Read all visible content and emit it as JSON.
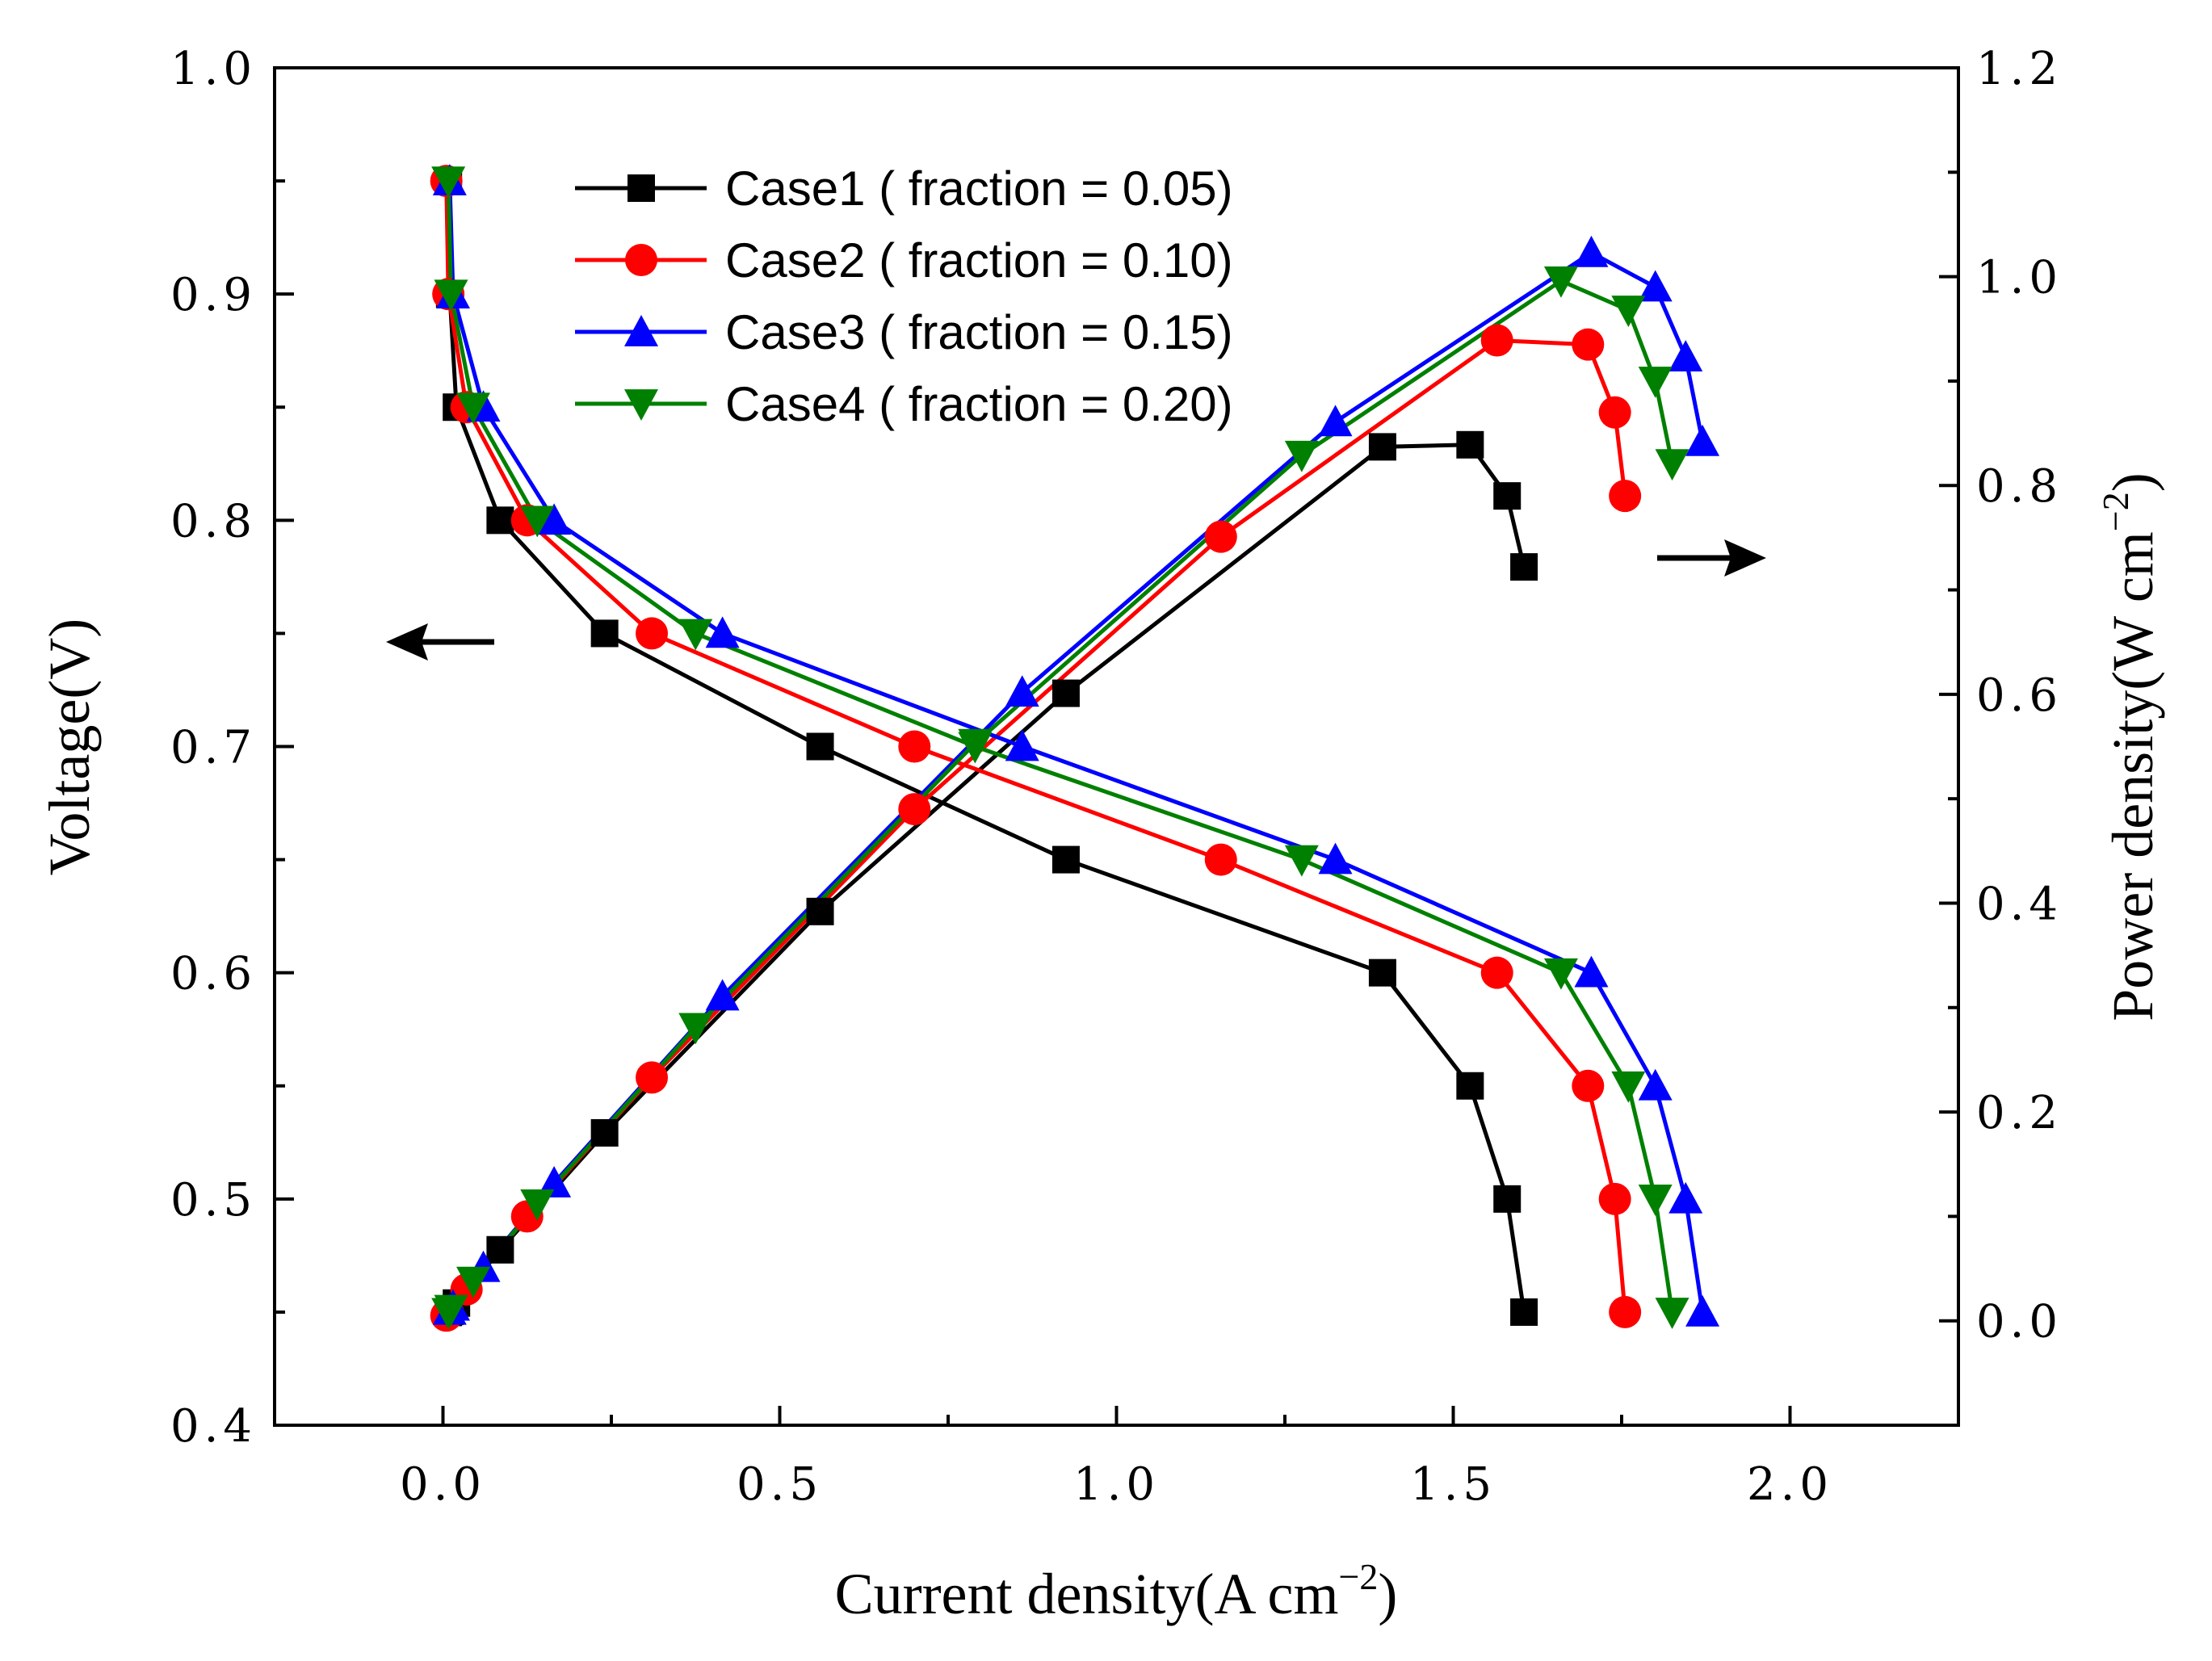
{
  "chart_data": {
    "type": "line",
    "title": "",
    "xlabel": "Current density(A cm",
    "xlabel_sup": "−2",
    "xlabel_end": ")",
    "ylabel": "Voltage(V)",
    "y2label": "Power density(W cm",
    "y2label_sup": "−2",
    "y2label_end": ")",
    "xlim": [
      -0.25,
      2.25
    ],
    "ylim": [
      0.4,
      1.0
    ],
    "y2lim": [
      -0.1,
      1.2
    ],
    "xticks": [
      0.0,
      0.5,
      1.0,
      1.5,
      2.0
    ],
    "xtick_labels": [
      "0.0",
      "0.5",
      "1.0",
      "1.5",
      "2.0"
    ],
    "yticks": [
      0.4,
      0.5,
      0.6,
      0.7,
      0.8,
      0.9,
      1.0
    ],
    "ytick_labels": [
      "0.4",
      "0.5",
      "0.6",
      "0.7",
      "0.8",
      "0.9",
      "1.0"
    ],
    "y2ticks": [
      0.0,
      0.2,
      0.4,
      0.6,
      0.8,
      1.0,
      1.2
    ],
    "y2tick_labels": [
      "0.0",
      "0.2",
      "0.4",
      "0.6",
      "0.8",
      "1.0",
      "1.2"
    ],
    "legend_position": "top-center",
    "grid": false,
    "annotations": [
      "left arrow pointing to voltage axis",
      "right arrow pointing to power density axis"
    ],
    "series": [
      {
        "name": "Case1 ( fraction = 0.05)",
        "color": "#000000",
        "marker": "square",
        "current": [
          0.008,
          0.01,
          0.02,
          0.085,
          0.24,
          0.56,
          0.925,
          1.395,
          1.525,
          1.58,
          1.605
        ],
        "voltage": [
          0.95,
          0.9,
          0.85,
          0.8,
          0.75,
          0.7,
          0.65,
          0.6,
          0.55,
          0.5,
          0.45
        ],
        "power": [
          0.008,
          0.009,
          0.017,
          0.068,
          0.18,
          0.392,
          0.601,
          0.837,
          0.839,
          0.79,
          0.722
        ]
      },
      {
        "name": "Case2 ( fraction = 0.10)",
        "color": "#ff0000",
        "marker": "circle",
        "current": [
          0.005,
          0.008,
          0.035,
          0.125,
          0.31,
          0.7,
          1.155,
          1.565,
          1.7,
          1.74,
          1.755
        ],
        "voltage": [
          0.95,
          0.9,
          0.85,
          0.8,
          0.75,
          0.7,
          0.65,
          0.6,
          0.55,
          0.5,
          0.45
        ],
        "power": [
          0.005,
          0.007,
          0.03,
          0.1,
          0.233,
          0.49,
          0.751,
          0.939,
          0.935,
          0.87,
          0.79
        ]
      },
      {
        "name": "Case3 ( fraction = 0.15)",
        "color": "#0000ff",
        "marker": "triangle-up",
        "current": [
          0.01,
          0.015,
          0.06,
          0.165,
          0.415,
          0.86,
          1.325,
          1.705,
          1.8,
          1.845,
          1.87
        ],
        "voltage": [
          0.95,
          0.9,
          0.85,
          0.8,
          0.75,
          0.7,
          0.65,
          0.6,
          0.55,
          0.5,
          0.45
        ],
        "power": [
          0.01,
          0.014,
          0.051,
          0.132,
          0.311,
          0.602,
          0.861,
          1.023,
          0.99,
          0.923,
          0.842
        ]
      },
      {
        "name": "Case4 ( fraction = 0.20)",
        "color": "#008000",
        "marker": "triangle-down",
        "current": [
          0.008,
          0.012,
          0.045,
          0.14,
          0.375,
          0.79,
          1.275,
          1.66,
          1.76,
          1.8,
          1.825
        ],
        "voltage": [
          0.95,
          0.9,
          0.85,
          0.8,
          0.75,
          0.7,
          0.65,
          0.6,
          0.55,
          0.5,
          0.45
        ],
        "power": [
          0.008,
          0.011,
          0.038,
          0.112,
          0.281,
          0.553,
          0.829,
          0.996,
          0.968,
          0.9,
          0.821
        ]
      }
    ]
  }
}
